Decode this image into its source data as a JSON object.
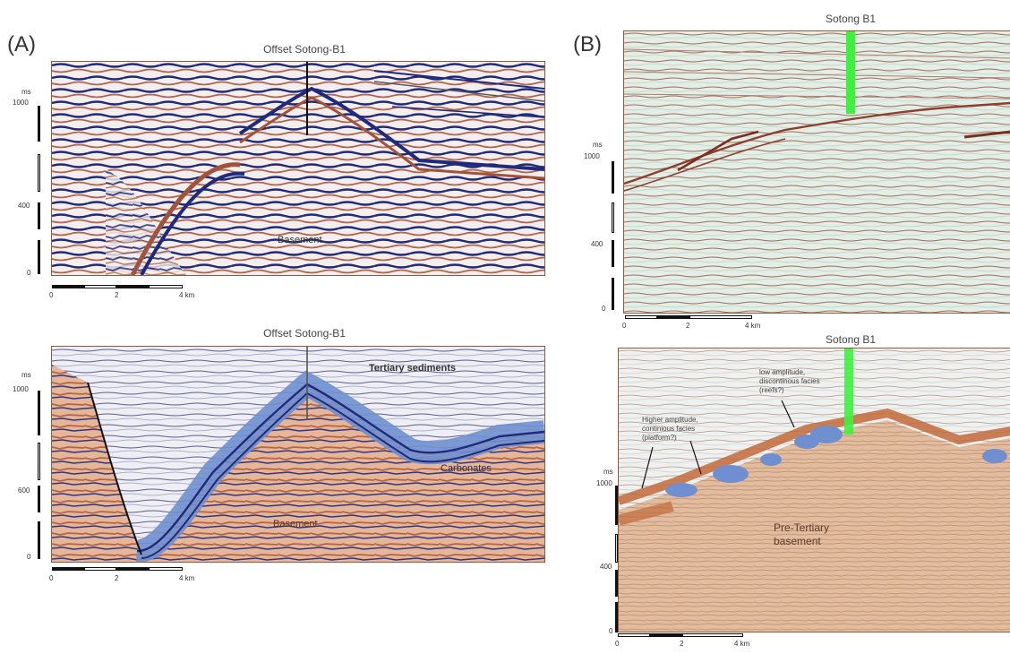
{
  "panel_a": {
    "letter": "(A)",
    "top": {
      "title": "Offset Sotong-B1",
      "label_basement": "Basement",
      "ms": "ms",
      "y_ticks": [
        "1000",
        "400",
        "0"
      ],
      "x_ticks": [
        "0",
        "2",
        "4 km"
      ]
    },
    "bottom": {
      "title": "Offset Sotong-B1",
      "label_tertiary": "Tertiary sediments",
      "label_carbonates": "Carbonates",
      "label_basement": "Basement",
      "ms": "ms",
      "y_ticks": [
        "1000",
        "600",
        "0"
      ],
      "x_ticks": [
        "0",
        "2",
        "4 km"
      ]
    }
  },
  "panel_b": {
    "letter": "(B)",
    "top": {
      "title": "Sotong B1",
      "ms": "ms",
      "y_ticks": [
        "1000",
        "400",
        "0"
      ],
      "x_ticks": [
        "0",
        "2",
        "4 km"
      ]
    },
    "bottom": {
      "title": "Sotong B1",
      "label_low_amp": "low amplitude, discontinous facies (reefs?)",
      "label_high_amp": "Higher amplitude, continious facies (platform?)",
      "label_pretertiary": "Pre-Tertiary basement",
      "ms": "ms",
      "y_ticks": [
        "1000",
        "400",
        "0"
      ],
      "x_ticks": [
        "0",
        "2",
        "4 km"
      ]
    }
  },
  "colors": {
    "seismic_blue": "#1f2a7a",
    "seismic_red": "#a0533a",
    "basement_fill": "#e6b69a",
    "carbonate_fill": "#6f8fd0",
    "wellbore_green": "#3df23d",
    "b_top_bg": "#e3efe6"
  }
}
